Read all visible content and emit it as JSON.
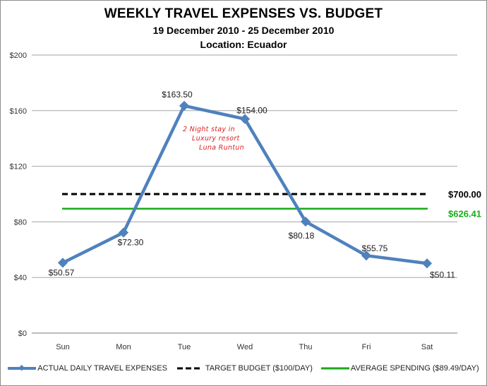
{
  "chart": {
    "title": "WEEKLY TRAVEL EXPENSES VS. BUDGET",
    "subtitle": "19 December 2010 - 25 December 2010",
    "location": "Location: Ecuador",
    "totals": {
      "budget_total": "$700.00",
      "actual_total": "$626.41"
    },
    "annotation": [
      "2 Night stay in",
      "Luxury resort",
      "Luna Runtun"
    ],
    "legend": [
      {
        "label": "ACTUAL DAILY TRAVEL EXPENSES",
        "color": "#4f81bd"
      },
      {
        "label": "TARGET BUDGET ($100/DAY)",
        "color": "#000000"
      },
      {
        "label": "AVERAGE SPENDING ($89.49/DAY)",
        "color": "#1aaa1a"
      }
    ],
    "y_ticks": [
      "$0",
      "$40",
      "$80",
      "$120",
      "$160",
      "$200"
    ],
    "x_ticks": [
      "Sun",
      "Mon",
      "Tue",
      "Wed",
      "Thu",
      "Fri",
      "Sat"
    ],
    "data_labels": [
      "$50.57",
      "$72.30",
      "$163.50",
      "$154.00",
      "$80.18",
      "$55.75",
      "$50.11"
    ]
  },
  "chart_data": {
    "type": "line",
    "title": "WEEKLY TRAVEL EXPENSES VS. BUDGET",
    "subtitle": "19 December 2010 - 25 December 2010 / Location: Ecuador",
    "xlabel": "",
    "ylabel": "",
    "categories": [
      "Sun",
      "Mon",
      "Tue",
      "Wed",
      "Thu",
      "Fri",
      "Sat"
    ],
    "series": [
      {
        "name": "ACTUAL DAILY TRAVEL EXPENSES",
        "values": [
          50.57,
          72.3,
          163.5,
          154.0,
          80.18,
          55.75,
          50.11
        ],
        "color": "#4f81bd",
        "marker": "diamond"
      },
      {
        "name": "TARGET BUDGET ($100/DAY)",
        "values": [
          100,
          100,
          100,
          100,
          100,
          100,
          100
        ],
        "color": "#000000",
        "style": "dashed"
      },
      {
        "name": "AVERAGE SPENDING ($89.49/DAY)",
        "values": [
          89.49,
          89.49,
          89.49,
          89.49,
          89.49,
          89.49,
          89.49
        ],
        "color": "#1aaa1a",
        "style": "solid"
      }
    ],
    "annotations": [
      {
        "text": "2 Night stay in Luxury resort Luna Runtun",
        "near": "Tue-Wed",
        "color": "#e02020"
      },
      {
        "text": "$700.00",
        "series": "TARGET BUDGET ($100/DAY)"
      },
      {
        "text": "$626.41",
        "series": "AVERAGE SPENDING ($89.49/DAY)"
      }
    ],
    "ylim": [
      0,
      200
    ],
    "y_ticks": [
      0,
      40,
      80,
      120,
      160,
      200
    ],
    "y_tick_format": "$",
    "grid": true,
    "legend_position": "bottom"
  }
}
